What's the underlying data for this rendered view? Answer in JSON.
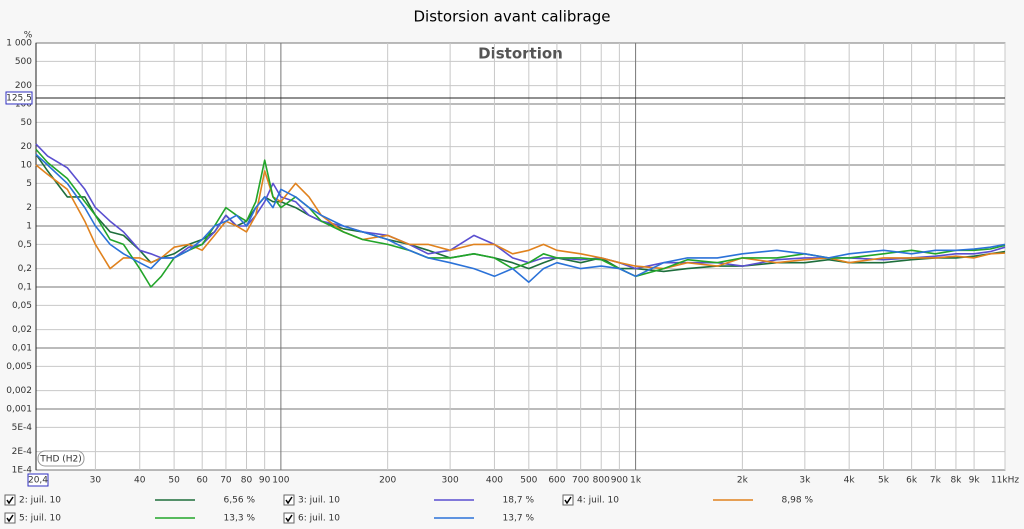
{
  "chart_data": {
    "type": "line",
    "title": "Distorsion avant calibrage",
    "plot_title": "Distortion",
    "y_unit": "%",
    "mode_button": "THD (H2)",
    "log_x": true,
    "log_y": true,
    "grid": true,
    "xlim": [
      20.4,
      11000
    ],
    "ylim": [
      0.0001,
      1000
    ],
    "cursor_x": {
      "value": 20.4,
      "label": "20,4"
    },
    "cursor_y": {
      "value": 125.5,
      "label": "125,5"
    },
    "xticks": [
      30,
      40,
      50,
      60,
      70,
      80,
      90,
      100,
      200,
      300,
      400,
      500,
      600,
      700,
      800,
      900,
      {
        "value": 1000,
        "label": "1k"
      },
      {
        "value": 2000,
        "label": "2k"
      },
      {
        "value": 3000,
        "label": "3k"
      },
      {
        "value": 4000,
        "label": "4k"
      },
      {
        "value": 5000,
        "label": "5k"
      },
      {
        "value": 6000,
        "label": "6k"
      },
      {
        "value": 7000,
        "label": "7k"
      },
      {
        "value": 8000,
        "label": "8k"
      },
      {
        "value": 9000,
        "label": "9k"
      },
      {
        "value": 11000,
        "label": "11kHz"
      }
    ],
    "yticks": [
      {
        "value": 1000,
        "label": "1 000"
      },
      500,
      200,
      100,
      50,
      20,
      10,
      5,
      2,
      1,
      {
        "value": 0.5,
        "label": "0,5"
      },
      {
        "value": 0.2,
        "label": "0,2"
      },
      {
        "value": 0.1,
        "label": "0,1"
      },
      {
        "value": 0.05,
        "label": "0,05"
      },
      {
        "value": 0.02,
        "label": "0,02"
      },
      {
        "value": 0.01,
        "label": "0,01"
      },
      {
        "value": 0.005,
        "label": "0,005"
      },
      {
        "value": 0.002,
        "label": "0,002"
      },
      {
        "value": 0.001,
        "label": "0,001"
      },
      {
        "value": 0.0005,
        "label": "5E-4"
      },
      {
        "value": 0.0002,
        "label": "2E-4"
      },
      {
        "value": 0.0001,
        "label": "1E-4"
      }
    ],
    "x": [
      20.4,
      22,
      25,
      28,
      30,
      33,
      36,
      40,
      43,
      46,
      50,
      55,
      60,
      65,
      70,
      75,
      80,
      85,
      90,
      95,
      100,
      110,
      120,
      130,
      150,
      170,
      200,
      230,
      260,
      300,
      350,
      400,
      450,
      500,
      550,
      600,
      700,
      800,
      900,
      1000,
      1200,
      1400,
      1700,
      2000,
      2500,
      3000,
      3500,
      4000,
      5000,
      6000,
      7000,
      8000,
      9000,
      10000,
      11000
    ],
    "series": [
      {
        "name": "2: juil. 10",
        "color": "#1e6e3c",
        "legend_value": {
          "value": 6.56,
          "label": "6,56 %"
        },
        "values": [
          15,
          8,
          3,
          3,
          1.5,
          0.8,
          0.7,
          0.4,
          0.25,
          0.3,
          0.35,
          0.5,
          0.6,
          0.8,
          1.5,
          1.0,
          1.2,
          2,
          3,
          2.5,
          2.5,
          2,
          1.5,
          1.2,
          0.9,
          0.8,
          0.6,
          0.5,
          0.4,
          0.3,
          0.35,
          0.3,
          0.25,
          0.2,
          0.25,
          0.3,
          0.25,
          0.3,
          0.2,
          0.2,
          0.18,
          0.2,
          0.22,
          0.22,
          0.25,
          0.25,
          0.28,
          0.25,
          0.25,
          0.28,
          0.3,
          0.3,
          0.32,
          0.35,
          0.38
        ]
      },
      {
        "name": "3: juil. 10",
        "color": "#5a4fd0",
        "legend_value": {
          "value": 18.7,
          "label": "18,7 %"
        },
        "values": [
          22,
          14,
          9,
          4,
          2,
          1.2,
          0.8,
          0.4,
          0.35,
          0.3,
          0.3,
          0.45,
          0.5,
          0.8,
          1.5,
          1.0,
          1.0,
          1.5,
          2.5,
          5,
          3,
          2.5,
          1.5,
          1.2,
          1.0,
          0.8,
          0.7,
          0.5,
          0.35,
          0.4,
          0.7,
          0.5,
          0.3,
          0.25,
          0.3,
          0.3,
          0.28,
          0.3,
          0.25,
          0.2,
          0.25,
          0.25,
          0.25,
          0.22,
          0.28,
          0.3,
          0.3,
          0.3,
          0.28,
          0.3,
          0.32,
          0.35,
          0.35,
          0.38,
          0.45
        ]
      },
      {
        "name": "4: juil. 10",
        "color": "#e0821e",
        "legend_value": {
          "value": 8.98,
          "label": "8,98 %"
        },
        "values": [
          10,
          7,
          4,
          1.2,
          0.5,
          0.2,
          0.3,
          0.3,
          0.25,
          0.3,
          0.45,
          0.5,
          0.4,
          0.7,
          1.2,
          1.0,
          0.8,
          1.5,
          8,
          3,
          2.5,
          5,
          3,
          1.5,
          0.8,
          0.6,
          0.7,
          0.5,
          0.5,
          0.4,
          0.5,
          0.5,
          0.35,
          0.4,
          0.5,
          0.4,
          0.35,
          0.3,
          0.25,
          0.22,
          0.2,
          0.25,
          0.22,
          0.3,
          0.25,
          0.28,
          0.3,
          0.25,
          0.3,
          0.3,
          0.3,
          0.32,
          0.3,
          0.35,
          0.36
        ]
      },
      {
        "name": "5: juil. 10",
        "color": "#22a52a",
        "legend_value": {
          "value": 13.3,
          "label": "13,3 %"
        },
        "values": [
          18,
          11,
          6,
          2.5,
          1.5,
          0.6,
          0.5,
          0.2,
          0.1,
          0.15,
          0.3,
          0.4,
          0.5,
          1.0,
          2.0,
          1.5,
          1.2,
          2.5,
          12,
          3,
          2,
          3,
          2,
          1.2,
          0.8,
          0.6,
          0.5,
          0.4,
          0.3,
          0.3,
          0.35,
          0.3,
          0.2,
          0.25,
          0.35,
          0.3,
          0.3,
          0.28,
          0.2,
          0.15,
          0.2,
          0.28,
          0.25,
          0.3,
          0.3,
          0.35,
          0.3,
          0.3,
          0.35,
          0.4,
          0.35,
          0.4,
          0.4,
          0.42,
          0.48
        ]
      },
      {
        "name": "6: juil. 10",
        "color": "#2b72d8",
        "legend_value": {
          "value": 13.7,
          "label": "13,7 %"
        },
        "values": [
          15,
          10,
          5,
          2,
          1.0,
          0.5,
          0.35,
          0.25,
          0.2,
          0.3,
          0.3,
          0.4,
          0.6,
          1.0,
          1.2,
          1.5,
          1.0,
          2.0,
          3,
          2,
          4,
          3,
          2,
          1.5,
          1.0,
          0.8,
          0.6,
          0.4,
          0.3,
          0.25,
          0.2,
          0.15,
          0.2,
          0.12,
          0.2,
          0.25,
          0.2,
          0.22,
          0.2,
          0.15,
          0.25,
          0.3,
          0.3,
          0.35,
          0.4,
          0.35,
          0.3,
          0.35,
          0.4,
          0.35,
          0.4,
          0.4,
          0.42,
          0.45,
          0.5
        ]
      }
    ]
  }
}
